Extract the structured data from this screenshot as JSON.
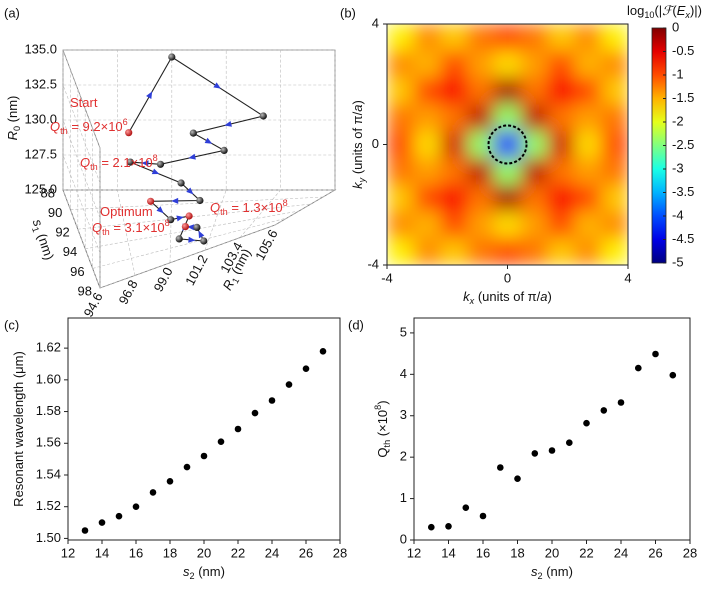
{
  "chart_data": [
    {
      "type": "scatter3d",
      "panel": "(a)",
      "x": [
        97.0,
        99.0,
        103.0,
        100.0,
        101.5,
        98.5,
        97.0,
        99.5,
        100.5,
        98.0,
        99.0,
        100.0,
        99.5,
        101.0,
        100.5,
        99.8
      ],
      "y": [
        92,
        88,
        90,
        91,
        92,
        92,
        93,
        93,
        94,
        93,
        94,
        95,
        96,
        97,
        96,
        95
      ],
      "z": [
        131.5,
        134.5,
        131.0,
        130.5,
        129.5,
        129.0,
        130.0,
        128.0,
        127.0,
        127.0,
        126.0,
        126.5,
        125.5,
        125.3,
        126.0,
        125.8
      ],
      "color": "#222222",
      "highlight": [
        0,
        9,
        11,
        15
      ],
      "highlight_color": "#e03030",
      "arrow_color": "#2f3fd8",
      "xlim": [
        94.6,
        105.6
      ],
      "ylim": [
        88,
        98
      ],
      "zlim": [
        125,
        135
      ],
      "xticks": [
        94.6,
        96.8,
        {
          "value": 99,
          "label": "99.0"
        },
        101.2,
        103.4,
        105.6
      ],
      "yticks": [
        88,
        90,
        92,
        94,
        96,
        98
      ],
      "zticks": [
        {
          "value": 125,
          "label": "125.0"
        },
        127.5,
        {
          "value": 130,
          "label": "130.0"
        },
        132.5,
        {
          "value": 135,
          "label": "135.0"
        }
      ],
      "x_label": [
        {
          "text": "R",
          "italic": true
        },
        {
          "text": "1",
          "shift": "sub"
        },
        {
          "text": " (nm)"
        }
      ],
      "y_label": [
        {
          "text": "s",
          "italic": true
        },
        {
          "text": "1",
          "shift": "sub"
        },
        {
          "text": " (nm)"
        }
      ],
      "z_label": [
        {
          "text": "R",
          "italic": true
        },
        {
          "text": "0",
          "shift": "sub"
        },
        {
          "text": " (nm)"
        }
      ],
      "annotations": [
        [
          {
            "text": "Start"
          }
        ],
        [
          {
            "text": "Q",
            "italic": true
          },
          {
            "text": "th",
            "shift": "sub"
          },
          {
            "text": " = 9.2×10"
          },
          {
            "text": "6",
            "shift": "super"
          }
        ],
        [
          {
            "text": "Q",
            "italic": true
          },
          {
            "text": "th",
            "shift": "sub"
          },
          {
            "text": " = 2.1×10"
          },
          {
            "text": "8",
            "shift": "super"
          }
        ],
        [
          {
            "text": "Optimum"
          }
        ],
        [
          {
            "text": "Q",
            "italic": true
          },
          {
            "text": "th",
            "shift": "sub"
          },
          {
            "text": " = 3.1×10"
          },
          {
            "text": "8",
            "shift": "super"
          }
        ],
        [
          {
            "text": "Q",
            "italic": true
          },
          {
            "text": "th",
            "shift": "sub"
          },
          {
            "text": " = 1.3×10"
          },
          {
            "text": "8",
            "shift": "super"
          }
        ]
      ]
    },
    {
      "type": "heatmap",
      "panel": "(b)",
      "colormap": "jet",
      "xlim": [
        -4,
        4
      ],
      "ylim": [
        -4,
        4
      ],
      "xticks": [
        -4,
        0,
        4
      ],
      "yticks": [
        -4,
        0,
        4
      ],
      "z": [
        [
          -1.8,
          -1.3,
          -1.6,
          -1.2,
          -1.0,
          -1.2,
          -1.6,
          -1.3,
          -1.8
        ],
        [
          -1.3,
          -1.5,
          -1.0,
          -1.4,
          -1.7,
          -1.4,
          -1.0,
          -1.5,
          -1.3
        ],
        [
          -1.6,
          -1.0,
          -0.6,
          -1.2,
          -0.2,
          -1.2,
          -0.6,
          -1.0,
          -1.6
        ],
        [
          -1.2,
          -1.4,
          -1.2,
          -0.3,
          -2.4,
          -0.3,
          -1.2,
          -1.4,
          -1.2
        ],
        [
          -1.0,
          -1.7,
          -0.4,
          -2.4,
          -4.2,
          -2.4,
          -0.4,
          -1.7,
          -1.0
        ],
        [
          -1.2,
          -1.4,
          -1.2,
          -0.3,
          -2.4,
          -0.3,
          -1.2,
          -1.4,
          -1.2
        ],
        [
          -1.6,
          -1.0,
          -0.6,
          -1.2,
          -0.2,
          -1.2,
          -0.6,
          -1.0,
          -1.6
        ],
        [
          -1.3,
          -1.5,
          -1.0,
          -1.4,
          -1.7,
          -1.4,
          -1.0,
          -1.5,
          -1.3
        ],
        [
          -1.8,
          -1.3,
          -1.6,
          -1.2,
          -1.0,
          -1.2,
          -1.6,
          -1.3,
          -1.8
        ]
      ],
      "clim": [
        -5,
        0
      ],
      "cticks": [
        0,
        -0.5,
        -1,
        -1.5,
        -2,
        -2.5,
        -3,
        -3.5,
        -4,
        -4.5,
        -5
      ],
      "colorbar_label": [
        {
          "text": "log"
        },
        {
          "text": "10",
          "shift": "sub"
        },
        {
          "text": "(|"
        },
        {
          "text": "ℱ",
          "italic": true
        },
        {
          "text": "("
        },
        {
          "text": "E",
          "italic": true
        },
        {
          "text": "x",
          "shift": "sub",
          "italic": true
        },
        {
          "text": ")|)"
        }
      ],
      "x_label": [
        {
          "text": "k",
          "italic": true
        },
        {
          "text": "x",
          "shift": "sub",
          "italic": true
        },
        {
          "text": " (units of π/"
        },
        {
          "text": "a",
          "italic": true
        },
        {
          "text": ")"
        }
      ],
      "y_label": [
        {
          "text": "k",
          "italic": true
        },
        {
          "text": "y",
          "shift": "sub",
          "italic": true
        },
        {
          "text": " (units of π/"
        },
        {
          "text": "a",
          "italic": true
        },
        {
          "text": ")"
        }
      ]
    },
    {
      "type": "scatter",
      "panel": "(c)",
      "color": "#000000",
      "x": [
        13,
        14,
        15,
        16,
        17,
        18,
        19,
        20,
        21,
        22,
        23,
        24,
        25,
        26,
        27
      ],
      "values": [
        1.505,
        1.51,
        1.514,
        1.52,
        1.529,
        1.536,
        1.545,
        1.552,
        1.561,
        1.569,
        1.579,
        1.587,
        1.597,
        1.607,
        1.618
      ],
      "xlim": [
        12,
        28
      ],
      "ylim": [
        1.499,
        1.639
      ],
      "xticks": [
        12,
        14,
        16,
        18,
        20,
        22,
        24,
        26,
        28
      ],
      "yticks": [
        {
          "value": 1.5,
          "label": "1.50"
        },
        1.52,
        1.54,
        1.56,
        1.58,
        {
          "value": 1.6,
          "label": "1.60"
        },
        1.62
      ],
      "x_label": [
        {
          "text": "s",
          "italic": true
        },
        {
          "text": "2",
          "shift": "sub"
        },
        {
          "text": " (nm)"
        }
      ],
      "y_label": [
        {
          "text": "Resonant wavelength (μm)"
        }
      ]
    },
    {
      "type": "scatter",
      "panel": "(d)",
      "color": "#000000",
      "x": [
        13,
        14,
        15,
        16,
        17,
        18,
        19,
        20,
        21,
        22,
        23,
        24,
        25,
        26,
        27
      ],
      "values": [
        0.31,
        0.33,
        0.78,
        0.58,
        1.75,
        1.48,
        2.09,
        2.16,
        2.35,
        2.82,
        3.13,
        3.32,
        4.15,
        4.49,
        3.98
      ],
      "xlim": [
        12,
        28
      ],
      "ylim": [
        0,
        5.36
      ],
      "xticks": [
        12,
        14,
        16,
        18,
        20,
        22,
        24,
        26,
        28
      ],
      "yticks": [
        0,
        1,
        2,
        3,
        4,
        5
      ],
      "x_label": [
        {
          "text": "s",
          "italic": true
        },
        {
          "text": "2",
          "shift": "sub"
        },
        {
          "text": " (nm)"
        }
      ],
      "y_label": [
        {
          "text": "Q"
        },
        {
          "text": "th",
          "shift": "sub"
        },
        {
          "text": " (×10"
        },
        {
          "text": "8",
          "shift": "super"
        },
        {
          "text": ")"
        }
      ]
    }
  ]
}
